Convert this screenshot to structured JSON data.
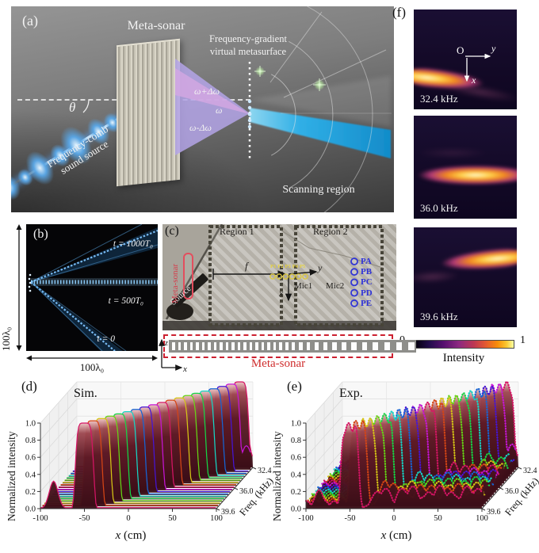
{
  "figure": {
    "title": "Meta-sonar frequency-gradient virtual metasurface figure"
  },
  "panel_a": {
    "label": "(a)",
    "meta_sonar": "Meta-sonar",
    "metasurface_line1": "Frequency-gradient",
    "metasurface_line2": "virtual metasurface",
    "theta": "θ",
    "omega_plus": "ω+Δω",
    "omega": "ω",
    "omega_minus": "ω-Δω",
    "source_line1": "Frequency-comb",
    "source_line2": "sound source",
    "scanning_region": "Scanning region",
    "colors": {
      "beam_blue": "#1ba6e8",
      "cone_purple": "#b4a4e8",
      "cone_pink": "#d4a8e2"
    }
  },
  "panel_b": {
    "label": "(b)",
    "annotations": [
      "t = 1000T₀",
      "t = 500T₀",
      "t = 0"
    ],
    "x_axis_label": "100λ₀",
    "y_axis_label": "100λ₀"
  },
  "panel_c": {
    "label": "(c)",
    "region1": "Region 1",
    "region2": "Region 2",
    "source": "Source",
    "meta_sonar_vertical": "Meta-sonar",
    "focal_label": "f",
    "axis_y": "y",
    "axis_x": "x",
    "mic1": "Mic1",
    "mic2": "Mic2",
    "yellow_points": [
      "P1",
      "P2",
      "P3",
      "P4",
      "P5"
    ],
    "blue_points": [
      "PA",
      "PB",
      "PC",
      "PD",
      "PE"
    ],
    "meta_sonar_bar": {
      "caption": "Meta-sonar",
      "axis_x": "x",
      "axis_z": "z",
      "n_slots": 33,
      "caption_color": "#cf2c2c"
    }
  },
  "panel_f": {
    "label": "(f)",
    "axes": {
      "origin": "O",
      "y": "y",
      "x": "x"
    },
    "colorbar": {
      "min": "0",
      "max": "1",
      "title": "Intensity"
    }
  },
  "chart_data": [
    {
      "id": "wf-d-svg",
      "panel_label": "(d)",
      "type": "line",
      "title": "Sim.",
      "xlabel": "x (cm)",
      "ylabel": "Normalized intensity",
      "zlabel": "Freq. (kHz)",
      "xlim": [
        -100,
        100
      ],
      "ylim": [
        0,
        1
      ],
      "x_ticks": [
        -100,
        -50,
        0,
        50,
        100
      ],
      "y_ticks": [
        0.0,
        0.2,
        0.4,
        0.6,
        0.8,
        1.0
      ],
      "freq_ticks": [
        39.6,
        36.0,
        32.4
      ],
      "series_freqs_khz": [
        39.6,
        39.2,
        38.8,
        38.4,
        38.0,
        37.6,
        37.2,
        36.8,
        36.4,
        36.0,
        35.6,
        35.2,
        34.8,
        34.4,
        34.0,
        33.6,
        33.2,
        32.8,
        32.4
      ],
      "series_peak_x_cm": [
        -50,
        -42.5,
        -35,
        -27.5,
        -20,
        -12.5,
        -5,
        2.5,
        10,
        17.5,
        25,
        32.5,
        40,
        47.5,
        55,
        62.5,
        70,
        77.5,
        85
      ],
      "peak_height": 1.0,
      "peak_halfwidth_cm": 11,
      "markers": false,
      "noisy": false,
      "side_lobes": [
        {
          "series": 0,
          "x": -85,
          "amp": 0.32,
          "w": 7
        },
        {
          "series": 17,
          "x": 95,
          "amp": 0.28,
          "w": 8
        },
        {
          "series": 18,
          "x": 90,
          "amp": 0.4,
          "w": 9
        }
      ]
    },
    {
      "id": "wf-e-svg",
      "panel_label": "(e)",
      "type": "line",
      "title": "Exp.",
      "xlabel": "x (cm)",
      "ylabel": "Normalized intensity",
      "zlabel": "Freq. (kHz)",
      "xlim": [
        -100,
        100
      ],
      "ylim": [
        0,
        1
      ],
      "x_ticks": [
        -100,
        -50,
        0,
        50,
        100
      ],
      "y_ticks": [
        0.0,
        0.2,
        0.4,
        0.6,
        0.8,
        1.0
      ],
      "freq_ticks": [
        39.6,
        36.0,
        32.4
      ],
      "series_freqs_khz": [
        39.6,
        39.2,
        38.8,
        38.4,
        38.0,
        37.6,
        37.2,
        36.8,
        36.4,
        36.0,
        35.6,
        35.2,
        34.8,
        34.4,
        34.0,
        33.6,
        33.2,
        32.8,
        32.4
      ],
      "series_peak_x_cm": [
        -50,
        -42.5,
        -35,
        -27.5,
        -20,
        -12.5,
        -5,
        2.5,
        10,
        17.5,
        25,
        32.5,
        40,
        47.5,
        55,
        62.5,
        70,
        77.5,
        85
      ],
      "peak_height": 1.0,
      "peak_halfwidth_cm": 11,
      "markers": true,
      "noisy": true,
      "side_lobes": [
        {
          "series": 0,
          "x": -85,
          "amp": 0.22,
          "w": 7
        },
        {
          "series": 17,
          "x": 95,
          "amp": 0.3,
          "w": 8
        },
        {
          "series": 18,
          "x": 90,
          "amp": 0.38,
          "w": 9
        }
      ]
    },
    {
      "id": "field-maps",
      "type": "heatmap",
      "maps": [
        {
          "freq_label": "32.4 kHz",
          "beam_top_frac": 0.6,
          "beam_angle_deg": 6,
          "beam_core_x_frac": 0.2
        },
        {
          "freq_label": "36.0 kHz",
          "beam_top_frac": 0.46,
          "beam_angle_deg": 0,
          "beam_core_x_frac": 0.58
        },
        {
          "freq_label": "39.6 kHz",
          "beam_top_frac": 0.22,
          "beam_angle_deg": -5,
          "beam_core_x_frac": 0.76
        }
      ],
      "colorbar": {
        "min": 0,
        "max": 1,
        "title": "Intensity"
      }
    }
  ]
}
